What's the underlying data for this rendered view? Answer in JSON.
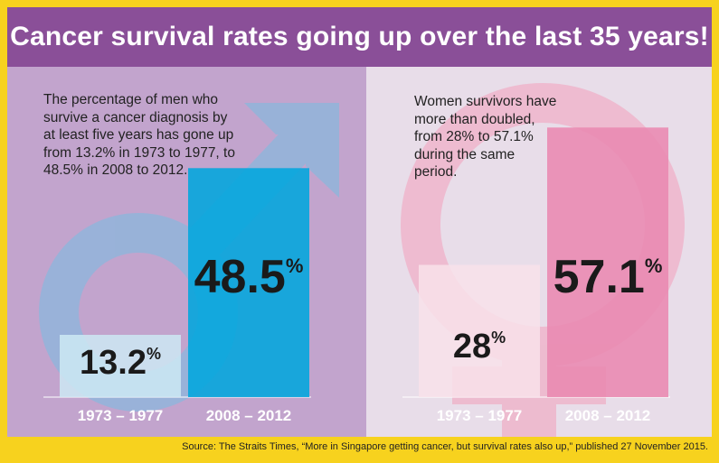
{
  "title": "Cancer survival rates going up over the last 35 years!",
  "source": "Source: The Straits Times, “More in Singapore getting cancer, but survival rates also up,” published 27 November 2015.",
  "men": {
    "description": "The percentage of men who survive a cancer diagnosis by at least five years has gone up from 13.2% in 1973 to 1977, to 48.5% in 2008 to 2012.",
    "symbol": "male-symbol-icon"
  },
  "women": {
    "description": "Women survivors have more than doubled, from 28% to 57.1% during the same period.",
    "symbol": "female-symbol-icon"
  },
  "colors": {
    "title_bg": "#8a4f98",
    "frame": "#f7d21e",
    "men_panel": "#c2a4cd",
    "women_panel": "#e8dde9",
    "men_bar_old": "#cde9f3",
    "men_bar_new": "#00a6dd",
    "women_bar_old": "#f8e2ea",
    "women_bar_new": "#e989b0"
  },
  "chart_data": [
    {
      "type": "bar",
      "title": "Men",
      "categories": [
        "1973 – 1977",
        "2008 – 2012"
      ],
      "values": [
        13.2,
        48.5
      ],
      "value_labels": [
        "13.2",
        "48.5"
      ],
      "unit": "%",
      "xlabel": "",
      "ylabel": "",
      "ylim": [
        0,
        65
      ]
    },
    {
      "type": "bar",
      "title": "Women",
      "categories": [
        "1973 – 1977",
        "2008 – 2012"
      ],
      "values": [
        28,
        57.1
      ],
      "value_labels": [
        "28",
        "57.1"
      ],
      "unit": "%",
      "xlabel": "",
      "ylabel": "",
      "ylim": [
        0,
        65
      ]
    }
  ]
}
